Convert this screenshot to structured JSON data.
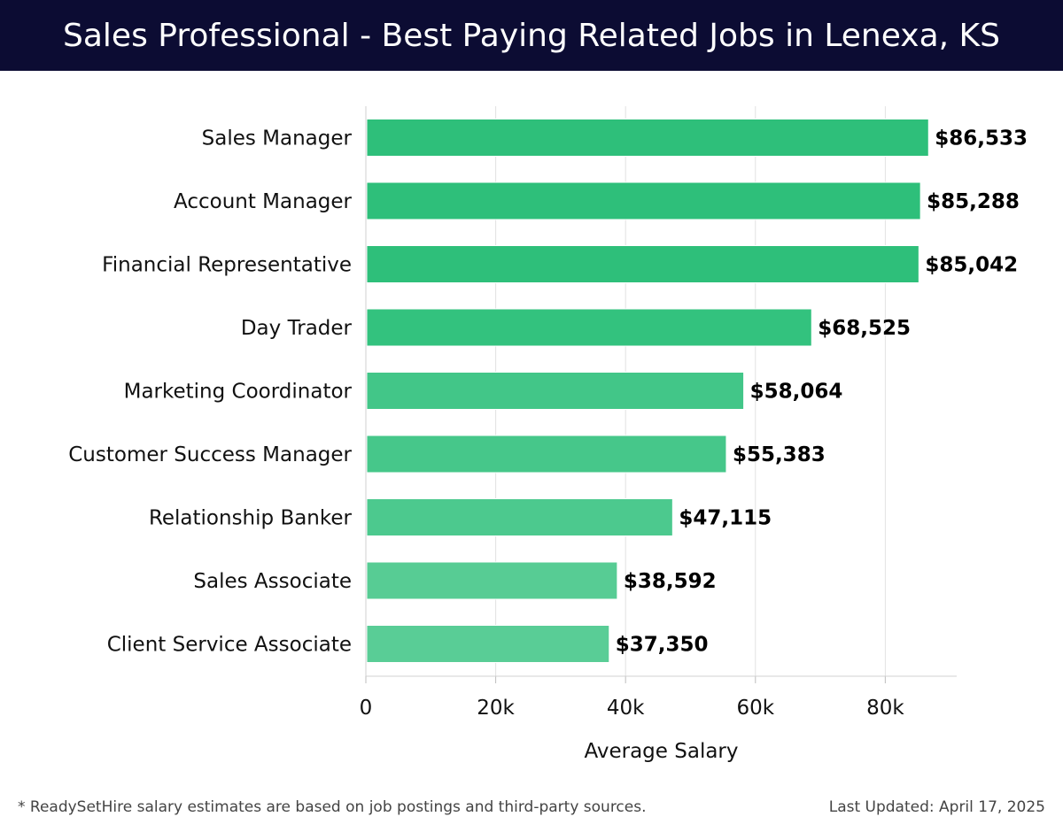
{
  "header": {
    "title": "Sales Professional - Best Paying Related Jobs in Lenexa, KS"
  },
  "footer": {
    "note": "* ReadySetHire salary estimates are based on job postings and third-party sources.",
    "updated": "Last Updated: April 17, 2025"
  },
  "chart_data": {
    "type": "bar",
    "orientation": "horizontal",
    "categories": [
      "Sales Manager",
      "Account Manager",
      "Financial Representative",
      "Day Trader",
      "Marketing Coordinator",
      "Customer Success Manager",
      "Relationship Banker",
      "Sales Associate",
      "Client Service Associate"
    ],
    "values": [
      86533,
      85288,
      85042,
      68525,
      58064,
      55383,
      47115,
      38592,
      37350
    ],
    "value_labels": [
      "$86,533",
      "$85,288",
      "$85,042",
      "$68,525",
      "$58,064",
      "$55,383",
      "$47,115",
      "$38,592",
      "$37,350"
    ],
    "bar_colors": [
      "#2ebf7a",
      "#2ebf7a",
      "#2ebf7a",
      "#33c27e",
      "#42c688",
      "#46c78a",
      "#4cc98e",
      "#57cc94",
      "#59cd96"
    ],
    "xlabel": "Average Salary",
    "ylabel": "",
    "xlim": [
      0,
      91000
    ],
    "xticks": [
      0,
      20000,
      40000,
      60000,
      80000
    ],
    "xtick_labels": [
      "0",
      "20k",
      "40k",
      "60k",
      "80k"
    ],
    "grid": "vertical"
  }
}
